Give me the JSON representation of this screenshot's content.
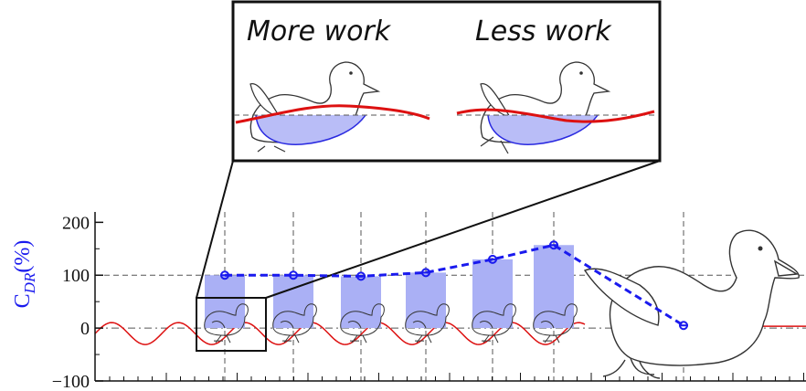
{
  "inset": {
    "left_label": "More work",
    "right_label": "Less work"
  },
  "colors": {
    "bar": "#aab0f5",
    "line": "#1a1aee",
    "wave": "#dd1111",
    "text": "#111111",
    "ylabel": "#1a1aee"
  },
  "icons": [
    "duckling-icon",
    "duck-icon"
  ],
  "chart_data": {
    "type": "bar",
    "ylabel": "C_DR(%)",
    "ylabel_main": "C",
    "ylabel_sub": "DR",
    "ylabel_unit": "(%)",
    "ylim": [
      -100,
      230
    ],
    "yticks": [
      200,
      100,
      0,
      -100
    ],
    "grid": true,
    "x": [
      1,
      2,
      3,
      4,
      5,
      6,
      7
    ],
    "values": [
      100,
      100,
      98,
      105,
      130,
      157,
      5
    ],
    "line_values": [
      100,
      100,
      98,
      105,
      130,
      157,
      5
    ]
  }
}
